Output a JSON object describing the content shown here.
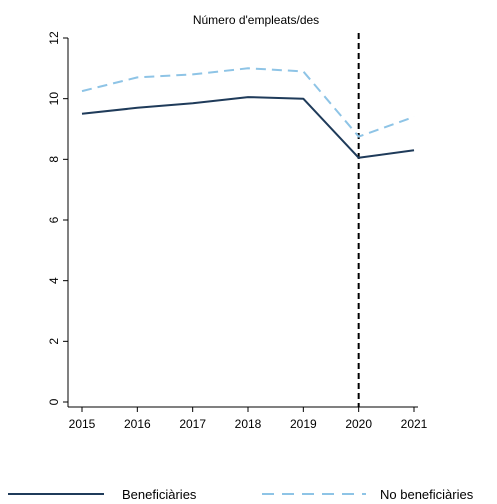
{
  "chart_data": {
    "type": "line",
    "title": "Número d'empleats/des",
    "xlabel": "",
    "ylabel": "",
    "x": [
      2015,
      2016,
      2017,
      2018,
      2019,
      2020,
      2021
    ],
    "x_tick_labels": [
      "2015",
      "2016",
      "2017",
      "2018",
      "2019",
      "2020",
      "2021"
    ],
    "ylim": [
      0,
      12
    ],
    "y_ticks": [
      0,
      2,
      4,
      6,
      8,
      10,
      12
    ],
    "y_tick_labels": [
      "0",
      "2",
      "4",
      "6",
      "8",
      "10",
      "12"
    ],
    "series": [
      {
        "name": "Beneficiàries",
        "values": [
          9.5,
          9.7,
          9.85,
          10.05,
          10.0,
          8.05,
          8.3
        ],
        "color": "#1f3b5a",
        "style": "solid"
      },
      {
        "name": "No beneficiàries",
        "values": [
          10.25,
          10.7,
          10.8,
          11.0,
          10.9,
          8.75,
          9.4
        ],
        "color": "#8ec4e6",
        "style": "dashed"
      }
    ],
    "reference_line": {
      "x": 2020,
      "style": "dashed",
      "color": "#000000"
    },
    "grid": false,
    "legend": "bottom"
  }
}
